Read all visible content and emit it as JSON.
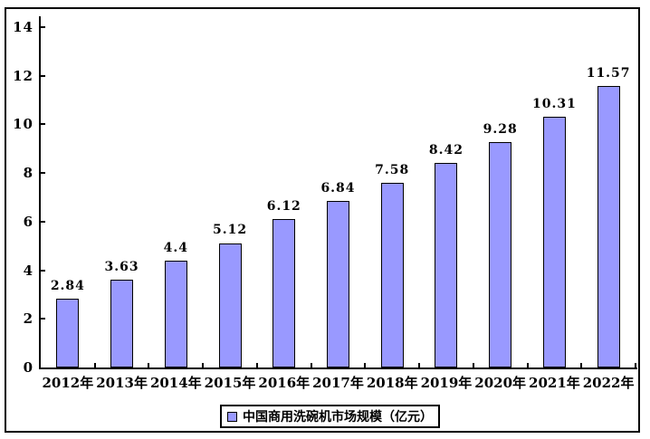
{
  "chart": {
    "background": "#FFFFFF",
    "border_color": "#000000",
    "text_color": "#000000"
  },
  "legend": {
    "label": "中国商用洗碗机市场规模（亿元）"
  },
  "chart_data": {
    "type": "bar",
    "title": "",
    "xlabel": "",
    "ylabel": "",
    "categories": [
      "2012年",
      "2013年",
      "2014年",
      "2015年",
      "2016年",
      "2017年",
      "2018年",
      "2019年",
      "2020年",
      "2021年",
      "2022年"
    ],
    "values": [
      2.84,
      3.63,
      4.4,
      5.12,
      6.12,
      6.84,
      7.58,
      8.42,
      9.28,
      10.31,
      11.57
    ],
    "value_labels": [
      "2.84",
      "3.63",
      "4.4",
      "5.12",
      "6.12",
      "6.84",
      "7.58",
      "8.42",
      "9.28",
      "10.31",
      "11.57"
    ],
    "series_name": "中国商用洗碗机市场规模（亿元）",
    "ylim": [
      0,
      14
    ],
    "yticks": [
      0,
      2,
      4,
      6,
      8,
      10,
      12,
      14
    ],
    "ytick_labels": [
      "0",
      "2",
      "4",
      "6",
      "8",
      "10",
      "12",
      "14"
    ],
    "grid": false,
    "legend_position": "bottom",
    "bar_color": "#9999FF",
    "bar_border_color": "#000000"
  }
}
